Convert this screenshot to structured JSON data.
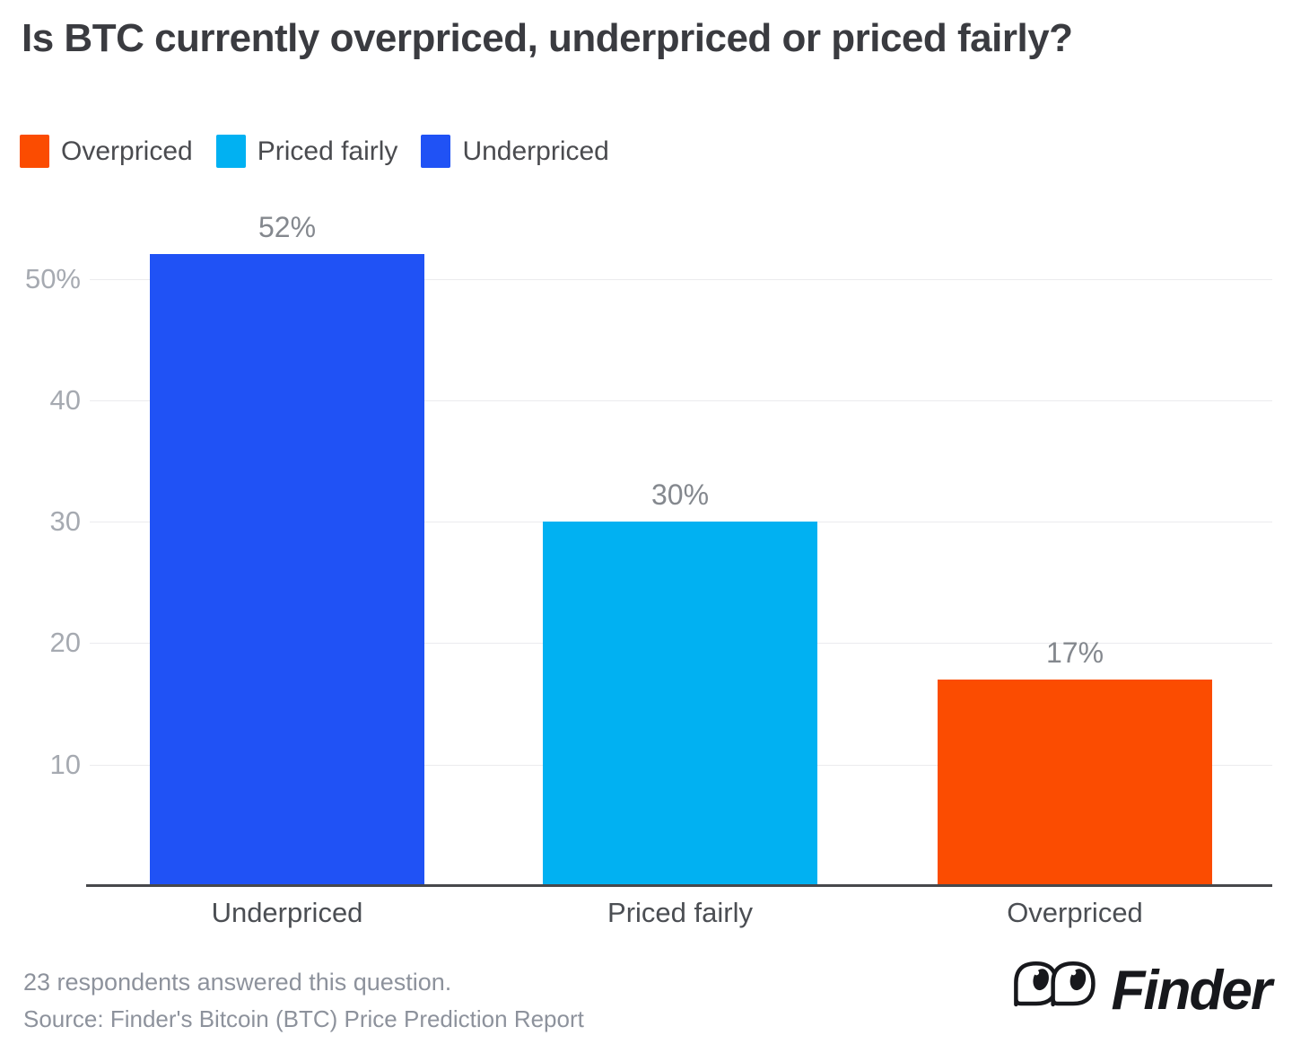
{
  "title": "Is BTC currently overpriced, underpriced or priced fairly?",
  "legend": [
    {
      "label": "Overpriced",
      "color": "#fb4c01"
    },
    {
      "label": "Priced fairly",
      "color": "#01b1f2"
    },
    {
      "label": "Underpriced",
      "color": "#2052f5"
    }
  ],
  "chart_data": {
    "type": "bar",
    "categories": [
      "Underpriced",
      "Priced fairly",
      "Overpriced"
    ],
    "values": [
      52,
      30,
      17
    ],
    "value_labels": [
      "52%",
      "30%",
      "17%"
    ],
    "bar_colors": [
      "#2052f5",
      "#01b1f2",
      "#fb4c01"
    ],
    "title": "Is BTC currently overpriced, underpriced or priced fairly?",
    "xlabel": "",
    "ylabel": "",
    "ylim": [
      0,
      55
    ],
    "yticks": [
      {
        "value": 50,
        "label": "50%"
      },
      {
        "value": 40,
        "label": "40"
      },
      {
        "value": 30,
        "label": "30"
      },
      {
        "value": 20,
        "label": "20"
      },
      {
        "value": 10,
        "label": "10"
      }
    ],
    "grid": true,
    "legend_position": "top-left"
  },
  "footer": {
    "note": "23 respondents answered this question.",
    "source": "Source: Finder's Bitcoin (BTC) Price Prediction Report",
    "brand": "Finder"
  },
  "colors": {
    "title_text": "#3a3b40",
    "legend_text": "#4a4b4f",
    "value_label": "#84888e",
    "ytick_text": "#a6aab1",
    "category_text": "#4b4e53",
    "gridline": "#ebebee",
    "axis_line": "#47484c",
    "footer_text": "#8d929c",
    "brand_black": "#17181c",
    "background": "#ffffff"
  }
}
